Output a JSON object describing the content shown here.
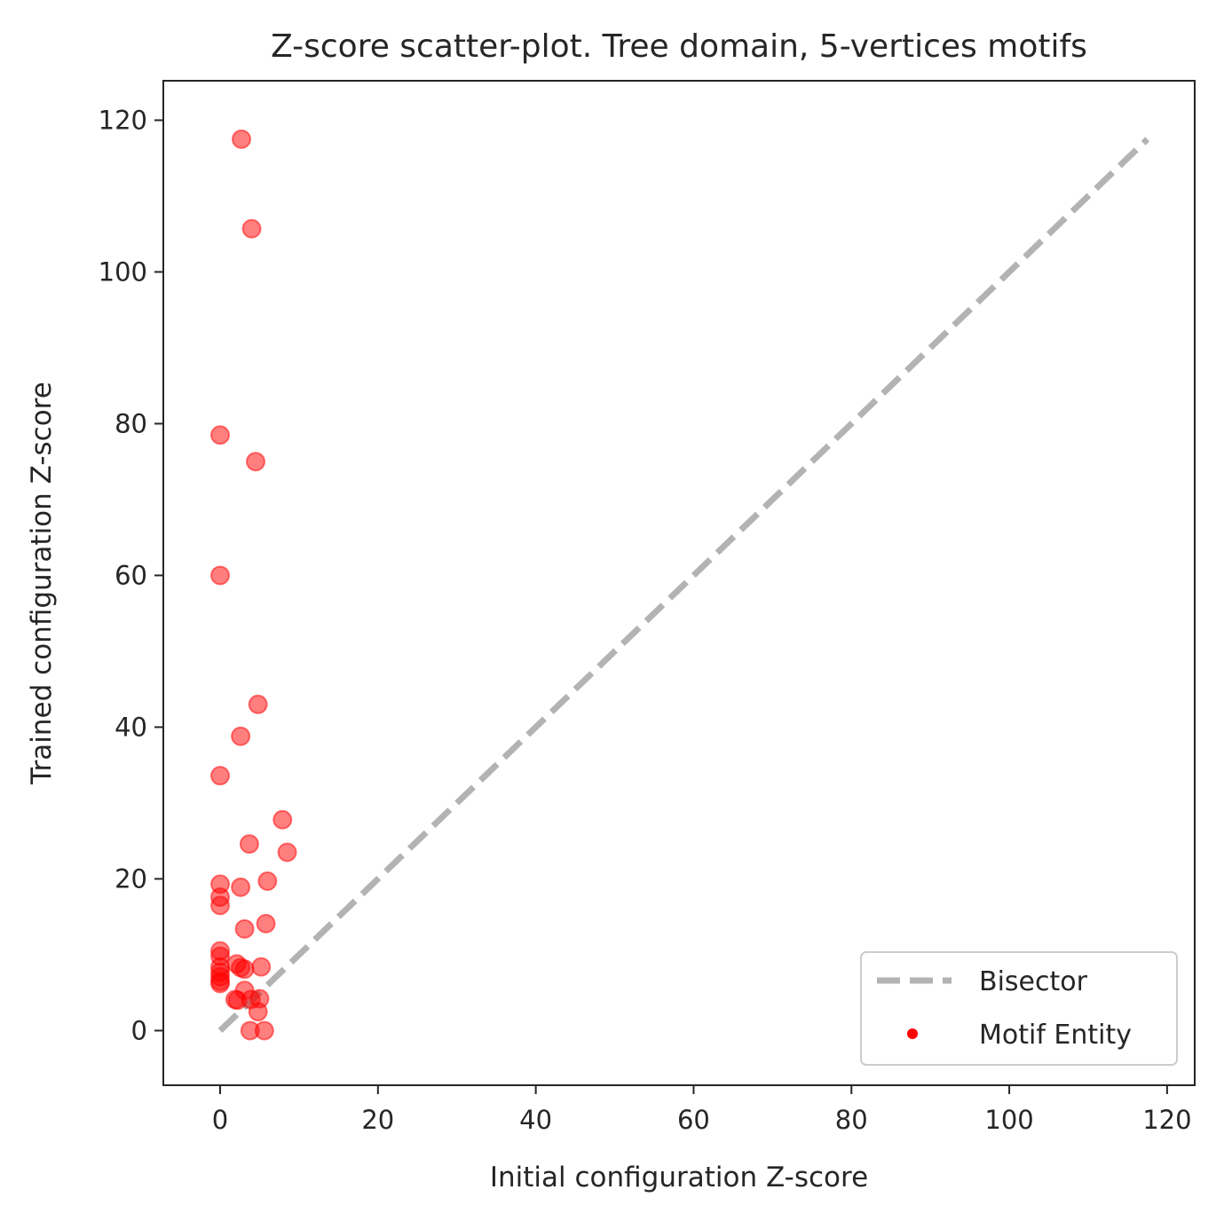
{
  "chart_data": {
    "type": "scatter",
    "title": "Z-score scatter-plot. Tree domain, 5-vertices motifs",
    "xlabel": "Initial configuration Z-score",
    "ylabel": "Trained configuration Z-score",
    "xlim": [
      -7.2,
      123.5
    ],
    "ylim": [
      -7.2,
      125.2
    ],
    "xticks": [
      0,
      20,
      40,
      60,
      80,
      100,
      120
    ],
    "yticks": [
      0,
      20,
      40,
      60,
      80,
      100,
      120
    ],
    "grid": false,
    "legend_position": "lower-right",
    "series": [
      {
        "name": "Bisector",
        "type": "line",
        "style": "dashed",
        "color": "#b3b3b3",
        "x": [
          0,
          117.5
        ],
        "y": [
          0,
          117.5
        ]
      },
      {
        "name": "Motif Entity",
        "type": "scatter",
        "color": "#ff0000",
        "points": [
          [
            2.7,
            117.5
          ],
          [
            4.0,
            105.7
          ],
          [
            0.0,
            78.5
          ],
          [
            4.5,
            75.0
          ],
          [
            0.0,
            60.0
          ],
          [
            4.8,
            43.0
          ],
          [
            2.6,
            38.8
          ],
          [
            0.0,
            33.6
          ],
          [
            7.9,
            27.8
          ],
          [
            3.7,
            24.6
          ],
          [
            8.5,
            23.5
          ],
          [
            0.0,
            19.3
          ],
          [
            2.6,
            18.9
          ],
          [
            6.0,
            19.7
          ],
          [
            0.0,
            17.6
          ],
          [
            0.0,
            16.5
          ],
          [
            5.8,
            14.1
          ],
          [
            3.1,
            13.4
          ],
          [
            0.0,
            10.5
          ],
          [
            0.0,
            9.8
          ],
          [
            0.0,
            8.4
          ],
          [
            0.0,
            7.7
          ],
          [
            0.0,
            7.1
          ],
          [
            0.0,
            6.5
          ],
          [
            0.0,
            6.2
          ],
          [
            2.1,
            8.8
          ],
          [
            2.6,
            8.3
          ],
          [
            3.1,
            8.1
          ],
          [
            5.2,
            8.4
          ],
          [
            3.1,
            5.3
          ],
          [
            1.9,
            4.1
          ],
          [
            2.2,
            4.0
          ],
          [
            3.9,
            4.1
          ],
          [
            5.0,
            4.2
          ],
          [
            4.8,
            2.5
          ],
          [
            3.8,
            0.0
          ],
          [
            5.6,
            0.0
          ]
        ]
      }
    ]
  }
}
